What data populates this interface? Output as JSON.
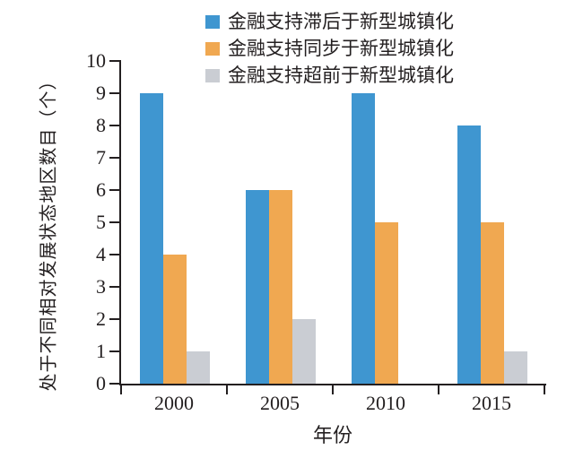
{
  "chart_data": {
    "type": "bar",
    "title": "",
    "categories": [
      "2000",
      "2005",
      "2010",
      "2015"
    ],
    "series": [
      {
        "name": "金融支持滞后于新型城镇化",
        "color": "#3f96d0",
        "values": [
          9,
          6,
          9,
          8
        ]
      },
      {
        "name": "金融支持同步于新型城镇化",
        "color": "#f0a851",
        "values": [
          4,
          6,
          5,
          5
        ]
      },
      {
        "name": "金融支持超前于新型城镇化",
        "color": "#cacdd3",
        "values": [
          1,
          2,
          0,
          1
        ]
      }
    ],
    "xlabel": "年份",
    "ylabel": "处于不同相对发展状态地区数目（个）",
    "ylim": [
      0,
      10
    ],
    "yticks": [
      0,
      1,
      2,
      3,
      4,
      5,
      6,
      7,
      8,
      9,
      10
    ],
    "grid": false,
    "legend_position": "top-center"
  },
  "colors": {
    "axis": "#231f20",
    "text": "#231f20",
    "background": "#ffffff"
  }
}
